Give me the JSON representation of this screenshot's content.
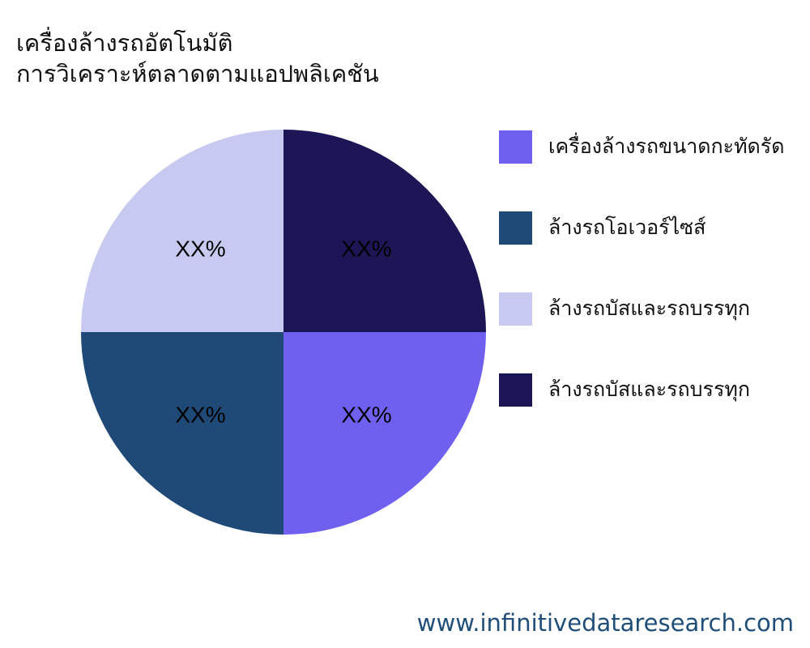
{
  "chart_data": {
    "type": "pie",
    "title": [
      "เครื่องล้างรถอัตโนมัติ",
      "การวิเคราะห์ตลาดตามแอปพลิเคชัน"
    ],
    "slices": [
      {
        "label": "เครื่องล้างรถขนาดกะทัดรัด",
        "value": 25,
        "display": "XX%",
        "color": "#7060f0"
      },
      {
        "label": "ล้างรถโอเวอร์ไซส์",
        "value": 25,
        "display": "XX%",
        "color": "#1f4a78"
      },
      {
        "label": "ล้างรถบัสและรถบรรทุก",
        "value": 25,
        "display": "XX%",
        "color": "#c8c9f0"
      },
      {
        "label": "ล้างรถบัสและรถบรรทุก",
        "value": 25,
        "display": "XX%",
        "color": "#1c1656"
      }
    ],
    "legend_position": "right"
  },
  "footer": "www.infinitivedataresearch.com"
}
